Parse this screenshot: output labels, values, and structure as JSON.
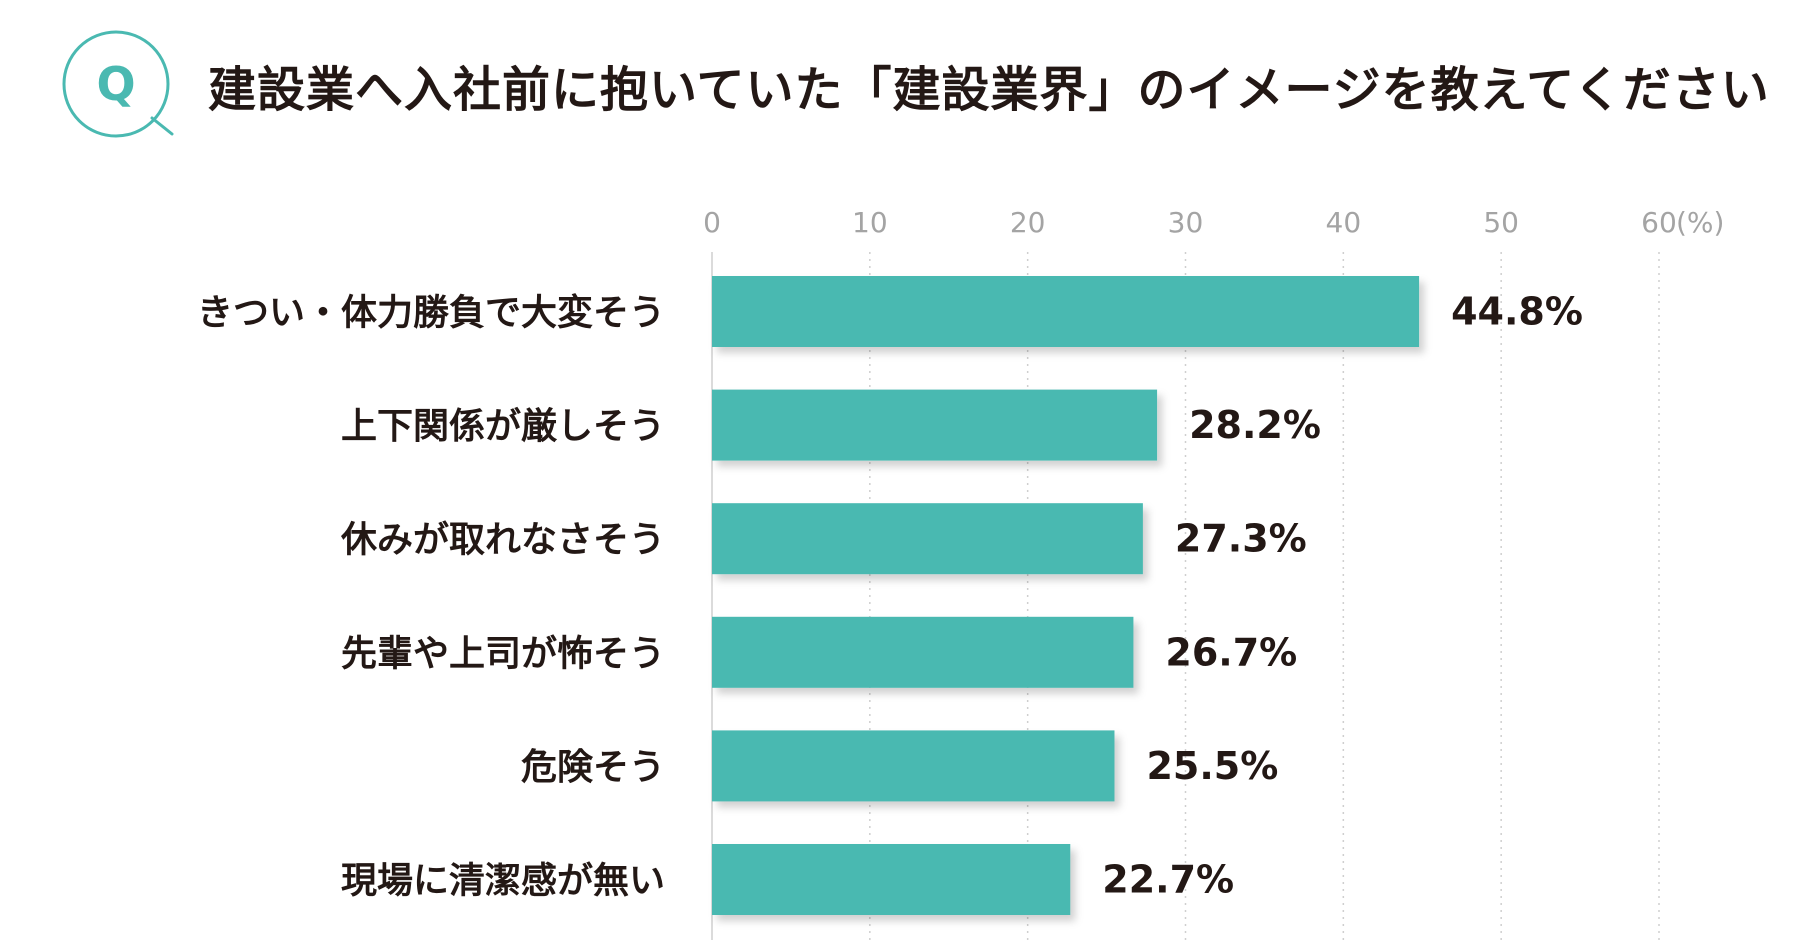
{
  "header": {
    "icon_letter": "Q",
    "title": "建設業へ入社前に抱いていた「建設業界」のイメージを教えてください"
  },
  "colors": {
    "bar": "#4ab9b1",
    "accent": "#4ab9b1",
    "text": "#231815",
    "tick": "#a4a4a4",
    "grid": "#cfcfcf"
  },
  "chart_data": {
    "type": "bar",
    "orientation": "horizontal",
    "title": "建設業へ入社前に抱いていた「建設業界」のイメージを教えてください",
    "categories": [
      "きつい・体力勝負で大変そう",
      "上下関係が厳しそう",
      "休みが取れなさそう",
      "先輩や上司が怖そう",
      "危険そう",
      "現場に清潔感が無い"
    ],
    "values": [
      44.8,
      28.2,
      27.3,
      26.7,
      25.5,
      22.7
    ],
    "value_labels": [
      "44.8%",
      "28.2%",
      "27.3%",
      "26.7%",
      "25.5%",
      "22.7%"
    ],
    "x_ticks": [
      "0",
      "10",
      "20",
      "30",
      "40",
      "50",
      "60"
    ],
    "x_unit": "(%)",
    "xlim": [
      0,
      60
    ],
    "grid": true,
    "axis_position": "top",
    "legend": "none"
  }
}
